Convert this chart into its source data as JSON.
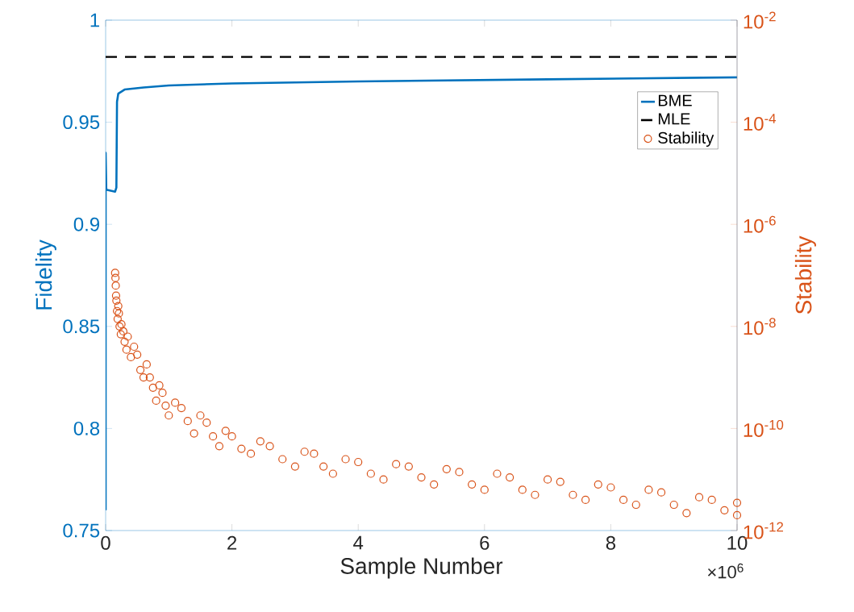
{
  "chart_data": {
    "type": "line",
    "xlabel": "Sample Number",
    "ylabel": "Fidelity",
    "y2label": "Stability",
    "xlim": [
      0,
      10
    ],
    "xticks": [
      0,
      2,
      4,
      6,
      8,
      10
    ],
    "ylim": [
      0.75,
      1
    ],
    "yticks": [
      0.75,
      0.8,
      0.85,
      0.9,
      0.95,
      1
    ],
    "y2lim": [
      1e-12,
      0.01
    ],
    "y2ticks": [
      {
        "value": 1e-12,
        "label": "10$^{-12}$"
      },
      {
        "value": 1e-10,
        "label": "10$^{-10}$"
      },
      {
        "value": 1e-08,
        "label": "10$^{-8}$"
      },
      {
        "value": 1e-06,
        "label": "10$^{-6}$"
      },
      {
        "value": 0.0001,
        "label": "10$^{-4}$"
      },
      {
        "value": 0.01,
        "label": "10$^{-2}$"
      }
    ],
    "log": "y2",
    "legend": "top right",
    "grid": false,
    "annotations": [
      "×10$^{6}$"
    ],
    "series": [
      {
        "name": "BME",
        "axis": "y",
        "color": "#0072bd",
        "line_style": "solid",
        "marker": "none",
        "x": [
          0,
          0,
          0.01,
          0.15,
          0.17,
          0.18,
          0.2,
          0.3,
          0.6,
          1,
          2,
          4,
          7,
          10
        ],
        "values": [
          0.76,
          0.935,
          0.917,
          0.916,
          0.918,
          0.96,
          0.964,
          0.966,
          0.967,
          0.968,
          0.969,
          0.97,
          0.971,
          0.972
        ]
      },
      {
        "name": "MLE",
        "axis": "y",
        "color": "#000000",
        "line_style": "dashed",
        "marker": "none",
        "x": [
          0,
          10
        ],
        "values": [
          0.982,
          0.982
        ]
      },
      {
        "name": "Stability",
        "type": "scatter",
        "axis": "y2",
        "color": "#d95319",
        "marker": "circle",
        "x": [
          0.15,
          0.16,
          0.17,
          0.18,
          0.2,
          0.22,
          0.25,
          0.3,
          0.35,
          0.4,
          0.5,
          0.6,
          0.7,
          0.8,
          0.9,
          1,
          1.2,
          1.4,
          1.6,
          1.8,
          2,
          2.3,
          2.6,
          3,
          3.3,
          3.6,
          4,
          4.4,
          4.8,
          5.2,
          5.6,
          6,
          6.4,
          6.8,
          7.2,
          7.6,
          8,
          8.4,
          8.8,
          9.2,
          9.6,
          10,
          10,
          0.155,
          0.165,
          0.19,
          0.21,
          0.24,
          0.28,
          0.33,
          0.45,
          0.55,
          0.65,
          0.75,
          0.85,
          0.95,
          1.1,
          1.3,
          1.5,
          1.7,
          1.9,
          2.15,
          2.45,
          2.8,
          3.15,
          3.45,
          3.8,
          4.2,
          4.6,
          5.0,
          5.4,
          5.8,
          6.2,
          6.6,
          7.0,
          7.4,
          7.8,
          8.2,
          8.6,
          9.0,
          9.4,
          9.8
        ],
        "values": [
          1.12e-07,
          6.3e-08,
          3.2e-08,
          2e-08,
          2.5e-08,
          1e-08,
          1.1e-08,
          5e-09,
          6.3e-09,
          2.5e-09,
          2.8e-09,
          1e-09,
          1e-09,
          3.5e-10,
          5e-10,
          1.8e-10,
          2.5e-10,
          8e-11,
          1.3e-10,
          4.5e-11,
          7e-11,
          3.2e-11,
          4.5e-11,
          1.8e-11,
          3.2e-11,
          1.3e-11,
          2.2e-11,
          1e-11,
          1.8e-11,
          8e-12,
          1.4e-11,
          6.3e-12,
          1.1e-11,
          5e-12,
          9e-12,
          4e-12,
          7e-12,
          3.2e-12,
          5.6e-12,
          2.2e-12,
          4e-12,
          2e-12,
          3.5e-12,
          8.9e-08,
          4e-08,
          1.4e-08,
          1.8e-08,
          7e-09,
          8e-09,
          3.5e-09,
          4e-09,
          1.4e-09,
          1.8e-09,
          6.3e-10,
          7e-10,
          2.8e-10,
          3.2e-10,
          1.4e-10,
          1.8e-10,
          7e-11,
          9e-11,
          4e-11,
          5.6e-11,
          2.5e-11,
          3.5e-11,
          1.8e-11,
          2.5e-11,
          1.3e-11,
          2e-11,
          1.1e-11,
          1.6e-11,
          8e-12,
          1.3e-11,
          6.3e-12,
          1e-11,
          5e-12,
          8e-12,
          4e-12,
          6.3e-12,
          3.2e-12,
          4.5e-12,
          2.5e-12
        ]
      }
    ]
  }
}
